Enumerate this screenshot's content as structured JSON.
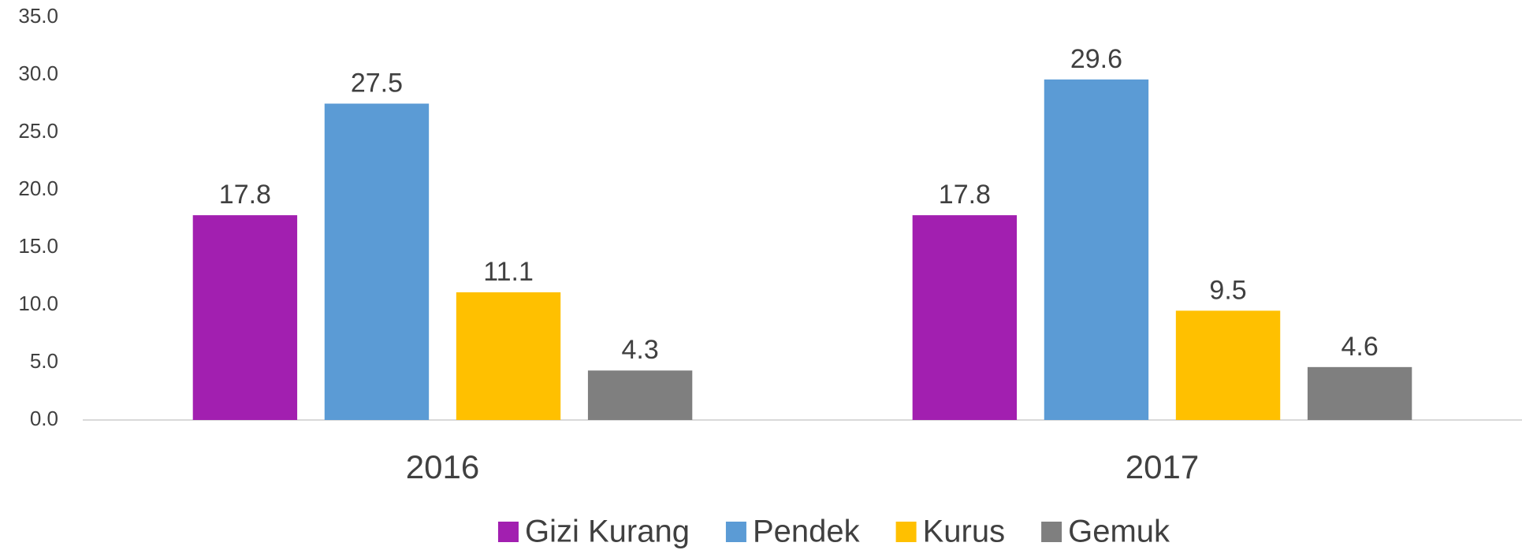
{
  "chart_data": {
    "type": "bar",
    "categories": [
      "2016",
      "2017"
    ],
    "series": [
      {
        "name": "Gizi Kurang",
        "color": "#a21fb0",
        "values": [
          17.8,
          17.8
        ]
      },
      {
        "name": "Pendek",
        "color": "#5b9bd5",
        "values": [
          27.5,
          29.6
        ]
      },
      {
        "name": "Kurus",
        "color": "#ffc000",
        "values": [
          11.1,
          9.5
        ]
      },
      {
        "name": "Gemuk",
        "color": "#7f7f7f",
        "values": [
          4.3,
          4.6
        ]
      }
    ],
    "ylim": [
      0,
      35
    ],
    "yticks": [
      {
        "value": 0,
        "label": "0.0"
      },
      {
        "value": 5,
        "label": "5.0"
      },
      {
        "value": 10,
        "label": "10.0"
      },
      {
        "value": 15,
        "label": "15.0"
      },
      {
        "value": 20,
        "label": "20.0"
      },
      {
        "value": 25,
        "label": "25.0"
      },
      {
        "value": 30,
        "label": "30.0"
      },
      {
        "value": 35,
        "label": "35.0"
      }
    ],
    "grid": false,
    "legend": "bottom"
  }
}
